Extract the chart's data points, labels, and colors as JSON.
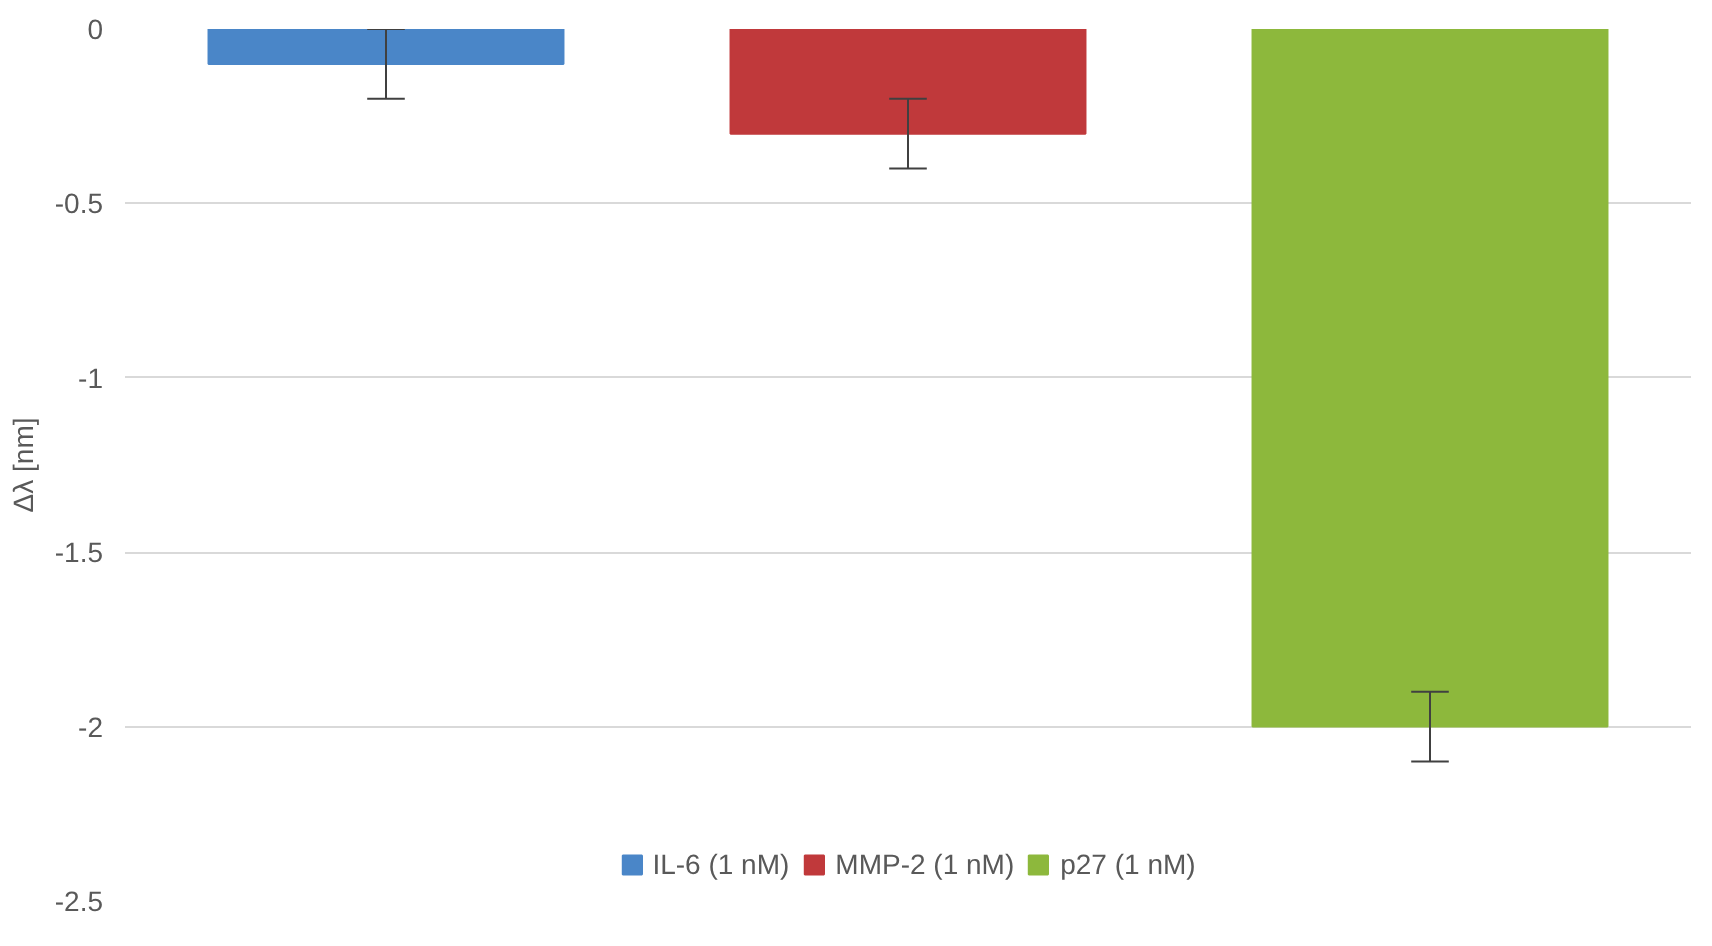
{
  "chart_data": {
    "type": "bar",
    "ylabel": "Δλ [nm]",
    "categories": [
      null
    ],
    "series": [
      {
        "name": "IL-6 (1 nM)",
        "color": "#4a86c8",
        "values": [
          -0.1
        ],
        "errors": [
          0.1
        ]
      },
      {
        "name": "MMP-2 (1 nM)",
        "color": "#c0393b",
        "values": [
          -0.3
        ],
        "errors": [
          0.1
        ]
      },
      {
        "name": "p27 (1 nM)",
        "color": "#8db83c",
        "values": [
          -2.0
        ],
        "errors": [
          0.1
        ]
      }
    ],
    "ylim": [
      -2.5,
      0
    ],
    "yticks": [
      0,
      -0.5,
      -1,
      -1.5,
      -2,
      -2.5
    ],
    "grid": "y",
    "legend": "bottom",
    "tick_labels": "y"
  }
}
